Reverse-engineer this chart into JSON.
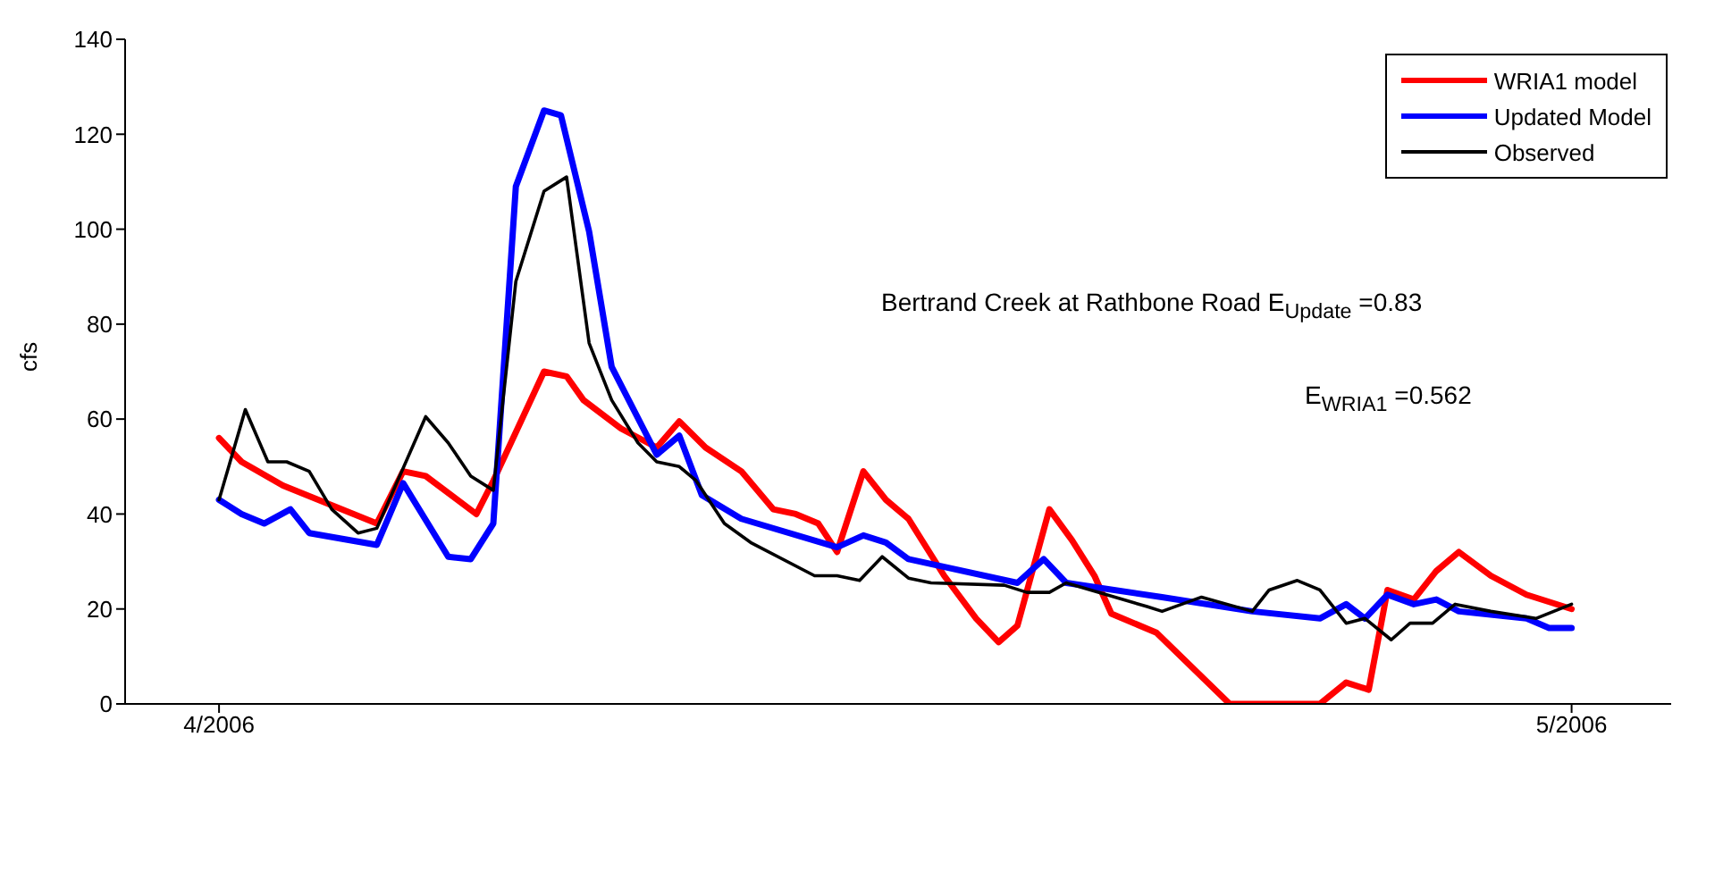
{
  "chart_data": {
    "type": "line",
    "ylabel": "cfs",
    "xlim": [
      "2006-03-29T22:00",
      "2006-05-03T05:00"
    ],
    "xticks": [
      {
        "value": "2006-04-01T00:00",
        "label": "4/2006"
      },
      {
        "value": "2006-05-01T00:00",
        "label": "5/2006"
      }
    ],
    "ylim": [
      0,
      140
    ],
    "yticks": [
      0,
      20,
      40,
      60,
      80,
      100,
      120,
      140
    ],
    "grid": false,
    "legend": "top right",
    "marker": "none",
    "line_style": "solid",
    "annotations": [
      "Bertrand Creek at Rathbone Road E$_{Update}$ =0.83",
      "E$_{WRIA1}$ =0.562"
    ],
    "series": [
      {
        "name": "WRIA1 model",
        "color": "#ff0000",
        "x": [
          "2006-04-01T00:00",
          "2006-04-01T12:00",
          "2006-04-02T10:00",
          "2006-04-04T12:00",
          "2006-04-05T02:00",
          "2006-04-05T14:00",
          "2006-04-06T17:00",
          "2006-04-07T02:00",
          "2006-04-08T05:00",
          "2006-04-08T17:00",
          "2006-04-09T02:00",
          "2006-04-09T22:00",
          "2006-04-10T17:00",
          "2006-04-11T05:00",
          "2006-04-11T19:00",
          "2006-04-12T14:00",
          "2006-04-13T07:00",
          "2006-04-13T19:00",
          "2006-04-14T07:00",
          "2006-04-14T17:00",
          "2006-04-15T07:00",
          "2006-04-15T19:00",
          "2006-04-16T07:00",
          "2006-04-17T02:00",
          "2006-04-17T19:00",
          "2006-04-18T07:00",
          "2006-04-18T17:00",
          "2006-04-19T10:00",
          "2006-04-19T22:00",
          "2006-04-20T10:00",
          "2006-04-20T19:00",
          "2006-04-21T19:00",
          "2006-04-23T10:00",
          "2006-04-25T10:00",
          "2006-04-26T00:00",
          "2006-04-26T12:00",
          "2006-04-26T22:00",
          "2006-04-27T12:00",
          "2006-04-28T00:00",
          "2006-04-28T12:00",
          "2006-04-29T05:00",
          "2006-04-30T00:00",
          "2006-05-01T00:00"
        ],
        "values": [
          56,
          51,
          46,
          38,
          49,
          48,
          40,
          47,
          70,
          69,
          64,
          58,
          54,
          59.5,
          54,
          49,
          41,
          40,
          38,
          32,
          49,
          43,
          39,
          27,
          18,
          13,
          16.5,
          41,
          34.5,
          27,
          19,
          15,
          0,
          0,
          4.5,
          3,
          24,
          22,
          28,
          32,
          27,
          23,
          20
        ]
      },
      {
        "name": "Updated Model",
        "color": "#0000ff",
        "x": [
          "2006-04-01T00:00",
          "2006-04-01T12:00",
          "2006-04-02T00:00",
          "2006-04-02T14:00",
          "2006-04-03T00:00",
          "2006-04-04T12:00",
          "2006-04-05T02:00",
          "2006-04-06T02:00",
          "2006-04-06T14:00",
          "2006-04-07T02:00",
          "2006-04-07T14:00",
          "2006-04-08T05:00",
          "2006-04-08T14:00",
          "2006-04-09T05:00",
          "2006-04-09T17:00",
          "2006-04-10T17:00",
          "2006-04-11T05:00",
          "2006-04-11T17:00",
          "2006-04-12T14:00",
          "2006-04-14T17:00",
          "2006-04-15T07:00",
          "2006-04-15T19:00",
          "2006-04-16T07:00",
          "2006-04-18T17:00",
          "2006-04-19T07:00",
          "2006-04-19T19:00",
          "2006-04-21T22:00",
          "2006-04-23T22:00",
          "2006-04-25T10:00",
          "2006-04-26T00:00",
          "2006-04-26T10:00",
          "2006-04-26T22:00",
          "2006-04-27T12:00",
          "2006-04-28T00:00",
          "2006-04-28T12:00",
          "2006-04-30T00:00",
          "2006-04-30T12:00",
          "2006-05-01T00:00"
        ],
        "values": [
          43,
          40,
          38,
          41,
          36,
          33.5,
          46.5,
          31,
          30.5,
          38,
          109,
          125,
          124,
          99.5,
          71,
          52.5,
          56.5,
          44,
          39,
          33,
          35.5,
          34,
          30.5,
          25.5,
          30.5,
          25.5,
          22.5,
          19.5,
          18,
          21,
          18,
          23,
          21,
          22,
          19.5,
          18,
          16,
          16
        ]
      },
      {
        "name": "Observed",
        "color": "#000000",
        "x": [
          "2006-04-01T00:00",
          "2006-04-01T14:00",
          "2006-04-02T02:00",
          "2006-04-02T12:00",
          "2006-04-03T00:00",
          "2006-04-03T12:00",
          "2006-04-04T02:00",
          "2006-04-04T12:00",
          "2006-04-05T14:00",
          "2006-04-06T02:00",
          "2006-04-06T14:00",
          "2006-04-07T02:00",
          "2006-04-07T14:00",
          "2006-04-08T05:00",
          "2006-04-08T17:00",
          "2006-04-09T05:00",
          "2006-04-09T17:00",
          "2006-04-10T07:00",
          "2006-04-10T17:00",
          "2006-04-11T05:00",
          "2006-04-11T14:00",
          "2006-04-12T05:00",
          "2006-04-12T19:00",
          "2006-04-14T05:00",
          "2006-04-14T17:00",
          "2006-04-15T05:00",
          "2006-04-15T17:00",
          "2006-04-16T07:00",
          "2006-04-16T19:00",
          "2006-04-18T10:00",
          "2006-04-18T22:00",
          "2006-04-19T10:00",
          "2006-04-19T19:00",
          "2006-04-21T14:00",
          "2006-04-21T22:00",
          "2006-04-22T19:00",
          "2006-04-23T22:00",
          "2006-04-24T07:00",
          "2006-04-24T22:00",
          "2006-04-25T10:00",
          "2006-04-26T00:00",
          "2006-04-26T10:00",
          "2006-04-27T00:00",
          "2006-04-27T10:00",
          "2006-04-27T22:00",
          "2006-04-28T10:00",
          "2006-04-29T05:00",
          "2006-04-30T05:00",
          "2006-05-01T00:00"
        ],
        "values": [
          43,
          62,
          51,
          51,
          49,
          41,
          36,
          37,
          60.5,
          55,
          48,
          45,
          89,
          108,
          111,
          76,
          64,
          55,
          51,
          50,
          47,
          38,
          34,
          27,
          27,
          26,
          31,
          26.5,
          25.5,
          25,
          23.5,
          23.5,
          25.5,
          20.5,
          19.5,
          22.5,
          19.5,
          24,
          26,
          24,
          17,
          18,
          13.5,
          17,
          17,
          21,
          19.5,
          18,
          21
        ]
      }
    ]
  }
}
